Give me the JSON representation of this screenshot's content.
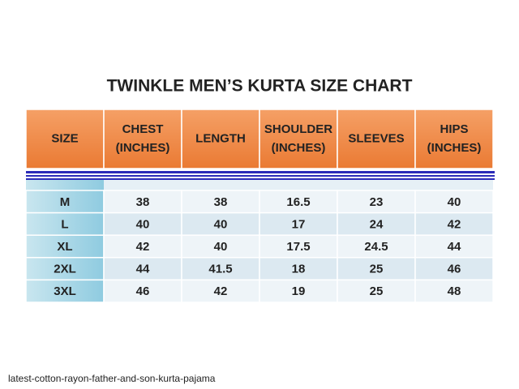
{
  "title": "TWINKLE MEN’S KURTA SIZE CHART",
  "table": {
    "header": [
      [
        "SIZE"
      ],
      [
        "CHEST",
        "(INCHES)"
      ],
      [
        "LENGTH"
      ],
      [
        "SHOULDER",
        "(INCHES)"
      ],
      [
        "SLEEVES"
      ],
      [
        "HIPS",
        "(INCHES)"
      ]
    ],
    "rows": [
      [
        "M",
        38,
        38,
        16.5,
        23,
        40
      ],
      [
        "L",
        40,
        40,
        17,
        24,
        42
      ],
      [
        "XL",
        42,
        40,
        17.5,
        24.5,
        44
      ],
      [
        "2XL",
        44,
        41.5,
        18,
        25,
        46
      ],
      [
        "3XL",
        46,
        42,
        19,
        25,
        48
      ]
    ]
  },
  "caption": "latest-cotton-rayon-father-and-son-kurta-pajama"
}
